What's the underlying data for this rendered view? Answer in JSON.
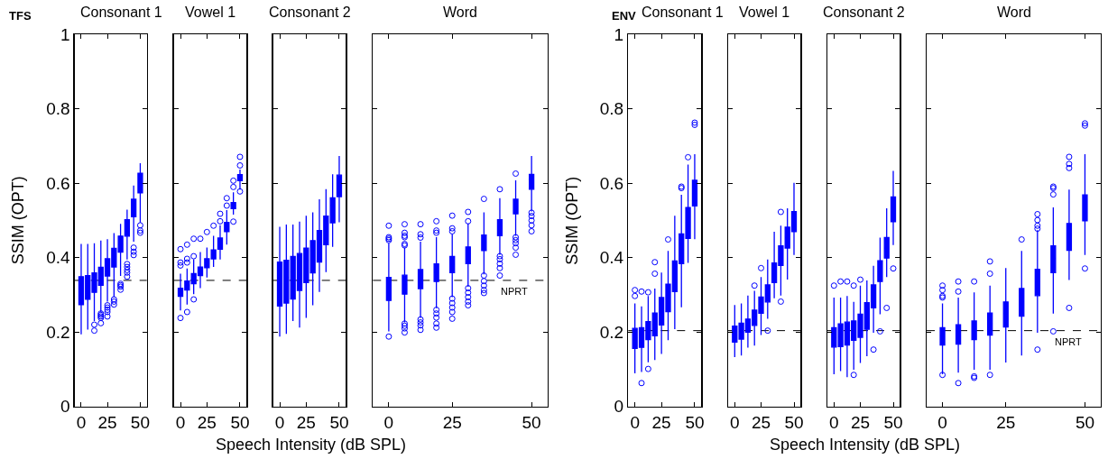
{
  "chart_data": [
    {
      "type": "box",
      "title": "Consonant 1",
      "ylabel": "SSIM (OPT)",
      "xlabel": "Speech Intensity (dB SPL)",
      "annotations": [
        "TFS"
      ],
      "categories": [
        "0",
        null,
        null,
        null,
        "25",
        null,
        null,
        null,
        null,
        "50"
      ],
      "ylim": [
        0,
        1
      ],
      "yticks": [
        0,
        0.2,
        0.4,
        0.6,
        0.8,
        1
      ],
      "ref_lines": [
        {
          "axis": "y",
          "value": 0.339,
          "line_style": "dashed",
          "color": "#000000"
        }
      ],
      "series": [
        {
          "color": "#0000ff",
          "boxes": [
            {
              "low": 0.194,
              "q1": 0.274,
              "median": 0.309,
              "q3": 0.349,
              "high": 0.437
            },
            {
              "low": 0.207,
              "q1": 0.288,
              "median": 0.321,
              "q3": 0.352,
              "high": 0.437
            },
            {
              "low": 0.23,
              "q1": 0.307,
              "median": 0.339,
              "q3": 0.359,
              "high": 0.439,
              "outliers": [
                0.22,
                0.204
              ]
            },
            {
              "low": 0.254,
              "q1": 0.326,
              "median": 0.358,
              "q3": 0.374,
              "high": 0.446,
              "outliers": [
                0.25,
                0.246,
                0.242,
                0.238,
                0.224
              ]
            },
            {
              "low": 0.282,
              "q1": 0.351,
              "median": 0.377,
              "q3": 0.397,
              "high": 0.45,
              "outliers": [
                0.272,
                0.266,
                0.26,
                0.254,
                0.242
              ]
            },
            {
              "low": 0.294,
              "q1": 0.375,
              "median": 0.404,
              "q3": 0.425,
              "high": 0.466,
              "outliers": [
                0.288,
                0.282,
                0.274
              ]
            },
            {
              "low": 0.351,
              "q1": 0.415,
              "median": 0.436,
              "q3": 0.458,
              "high": 0.491,
              "outliers": [
                0.33,
                0.326,
                0.322,
                0.314
              ]
            },
            {
              "low": 0.395,
              "q1": 0.458,
              "median": 0.481,
              "q3": 0.502,
              "high": 0.529,
              "outliers": [
                0.383,
                0.375,
                0.367,
                0.36,
                0.349
              ]
            },
            {
              "low": 0.443,
              "q1": 0.51,
              "median": 0.532,
              "q3": 0.557,
              "high": 0.594,
              "outliers": [
                0.427,
                0.416,
                0.407
              ]
            },
            {
              "low": 0.494,
              "q1": 0.574,
              "median": 0.605,
              "q3": 0.627,
              "high": 0.654,
              "outliers": [
                0.487,
                0.473,
                0.467
              ]
            }
          ]
        }
      ]
    },
    {
      "type": "box",
      "title": "Vowel 1",
      "tick_labels": "x",
      "categories": [
        "0",
        null,
        null,
        null,
        "25",
        null,
        null,
        null,
        null,
        "50"
      ],
      "ylim": [
        0,
        1
      ],
      "yticks": [
        0,
        0.2,
        0.4,
        0.6,
        0.8,
        1
      ],
      "ref_lines": [
        {
          "axis": "y",
          "value": 0.339,
          "line_style": "dashed",
          "color": "#000000"
        }
      ],
      "series": [
        {
          "color": "#0000ff",
          "boxes": [
            {
              "low": 0.258,
              "q1": 0.296,
              "median": 0.309,
              "q3": 0.318,
              "high": 0.357,
              "outliers": [
                0.423,
                0.387,
                0.379,
                0.238
              ]
            },
            {
              "low": 0.274,
              "q1": 0.313,
              "median": 0.325,
              "q3": 0.337,
              "high": 0.371,
              "outliers": [
                0.435,
                0.397,
                0.387,
                0.254
              ]
            },
            {
              "low": 0.302,
              "q1": 0.33,
              "median": 0.343,
              "q3": 0.357,
              "high": 0.396,
              "outliers": [
                0.451,
                0.404,
                0.288
              ]
            },
            {
              "low": 0.318,
              "q1": 0.352,
              "median": 0.363,
              "q3": 0.375,
              "high": 0.415,
              "outliers": [
                0.451
              ]
            },
            {
              "low": 0.347,
              "q1": 0.373,
              "median": 0.384,
              "q3": 0.397,
              "high": 0.427,
              "outliers": [
                0.469
              ]
            },
            {
              "low": 0.375,
              "q1": 0.397,
              "median": 0.408,
              "q3": 0.421,
              "high": 0.459,
              "outliers": [
                0.486
              ]
            },
            {
              "low": 0.395,
              "q1": 0.423,
              "median": 0.437,
              "q3": 0.453,
              "high": 0.487,
              "outliers": [
                0.498,
                0.518
              ]
            },
            {
              "low": 0.435,
              "q1": 0.47,
              "median": 0.485,
              "q3": 0.495,
              "high": 0.528,
              "outliers": [
                0.54,
                0.56
              ]
            },
            {
              "low": 0.516,
              "q1": 0.532,
              "median": 0.542,
              "q3": 0.548,
              "high": 0.576,
              "outliers": [
                0.59,
                0.607,
                0.497
              ]
            },
            {
              "low": 0.583,
              "q1": 0.607,
              "median": 0.615,
              "q3": 0.623,
              "high": 0.637,
              "outliers": [
                0.648,
                0.671,
                0.578
              ]
            }
          ]
        }
      ]
    },
    {
      "type": "box",
      "title": "Consonant 2",
      "tick_labels": "x",
      "categories": [
        "0",
        null,
        null,
        null,
        "25",
        null,
        null,
        null,
        null,
        "50"
      ],
      "ylim": [
        0,
        1
      ],
      "yticks": [
        0,
        0.2,
        0.4,
        0.6,
        0.8,
        1
      ],
      "ref_lines": [
        {
          "axis": "y",
          "value": 0.339,
          "line_style": "dashed",
          "color": "#000000"
        }
      ],
      "series": [
        {
          "color": "#0000ff",
          "boxes": [
            {
              "low": 0.188,
              "q1": 0.27,
              "median": 0.329,
              "q3": 0.388,
              "high": 0.483
            },
            {
              "low": 0.195,
              "q1": 0.278,
              "median": 0.347,
              "q3": 0.393,
              "high": 0.489
            },
            {
              "low": 0.23,
              "q1": 0.289,
              "median": 0.362,
              "q3": 0.403,
              "high": 0.489
            },
            {
              "low": 0.212,
              "q1": 0.312,
              "median": 0.373,
              "q3": 0.411,
              "high": 0.497
            },
            {
              "low": 0.238,
              "q1": 0.333,
              "median": 0.393,
              "q3": 0.426,
              "high": 0.513
            },
            {
              "low": 0.272,
              "q1": 0.359,
              "median": 0.418,
              "q3": 0.446,
              "high": 0.522
            },
            {
              "low": 0.308,
              "q1": 0.388,
              "median": 0.45,
              "q3": 0.473,
              "high": 0.557
            },
            {
              "low": 0.361,
              "q1": 0.435,
              "median": 0.491,
              "q3": 0.512,
              "high": 0.584
            },
            {
              "low": 0.429,
              "q1": 0.494,
              "median": 0.541,
              "q3": 0.561,
              "high": 0.624
            },
            {
              "low": 0.495,
              "q1": 0.564,
              "median": 0.606,
              "q3": 0.622,
              "high": 0.673
            }
          ]
        }
      ]
    },
    {
      "type": "box",
      "title": "Word",
      "tick_labels": "x",
      "categories": [
        "0",
        null,
        null,
        null,
        "25",
        null,
        null,
        null,
        null,
        "50"
      ],
      "ylim": [
        0,
        1
      ],
      "yticks": [
        0,
        0.2,
        0.4,
        0.6,
        0.8,
        1
      ],
      "ref_lines": [
        {
          "axis": "y",
          "value": 0.339,
          "label": "NPRT",
          "line_style": "dashed",
          "color": "#000000"
        }
      ],
      "series": [
        {
          "color": "#0000ff",
          "boxes": [
            {
              "low": 0.202,
              "q1": 0.285,
              "median": 0.313,
              "q3": 0.347,
              "high": 0.439,
              "outliers": [
                0.486,
                0.455,
                0.451,
                0.447,
                0.188
              ]
            },
            {
              "low": 0.226,
              "q1": 0.302,
              "median": 0.327,
              "q3": 0.353,
              "high": 0.427,
              "outliers": [
                0.49,
                0.467,
                0.459,
                0.455,
                0.437,
                0.433,
                0.223,
                0.217,
                0.21,
                0.199
              ]
            },
            {
              "low": 0.238,
              "q1": 0.317,
              "median": 0.343,
              "q3": 0.368,
              "high": 0.443,
              "outliers": [
                0.49,
                0.463,
                0.454,
                0.234,
                0.226,
                0.218,
                0.206
              ]
            },
            {
              "low": 0.264,
              "q1": 0.336,
              "median": 0.361,
              "q3": 0.383,
              "high": 0.455,
              "outliers": [
                0.498,
                0.473,
                0.467,
                0.26,
                0.25,
                0.239,
                0.223,
                0.212
              ]
            },
            {
              "low": 0.294,
              "q1": 0.36,
              "median": 0.383,
              "q3": 0.403,
              "high": 0.463,
              "outliers": [
                0.513,
                0.479,
                0.471,
                0.29,
                0.278,
                0.266,
                0.254,
                0.236
              ]
            },
            {
              "low": 0.322,
              "q1": 0.384,
              "median": 0.408,
              "q3": 0.429,
              "high": 0.492,
              "outliers": [
                0.523,
                0.498,
                0.318,
                0.306,
                0.294,
                0.282,
                0.272
              ]
            },
            {
              "low": 0.355,
              "q1": 0.419,
              "median": 0.441,
              "q3": 0.461,
              "high": 0.522,
              "outliers": [
                0.558,
                0.352,
                0.337,
                0.325,
                0.313,
                0.305
              ]
            },
            {
              "low": 0.408,
              "q1": 0.459,
              "median": 0.485,
              "q3": 0.502,
              "high": 0.56,
              "outliers": [
                0.584,
                0.404,
                0.396,
                0.384,
                0.372,
                0.352
              ]
            },
            {
              "low": 0.459,
              "q1": 0.518,
              "median": 0.541,
              "q3": 0.557,
              "high": 0.608,
              "outliers": [
                0.626,
                0.455,
                0.447,
                0.439,
                0.427,
                0.408
              ]
            },
            {
              "low": 0.524,
              "q1": 0.584,
              "median": 0.61,
              "q3": 0.624,
              "high": 0.673,
              "outliers": [
                0.521,
                0.512,
                0.5,
                0.487,
                0.471
              ]
            }
          ]
        }
      ]
    },
    {
      "type": "box",
      "title": "Consonant 1",
      "ylabel": "SSIM (OPT)",
      "xlabel": "Speech Intensity (dB SPL)",
      "annotations": [
        "ENV"
      ],
      "categories": [
        "0",
        null,
        null,
        null,
        "25",
        null,
        null,
        null,
        null,
        "50"
      ],
      "ylim": [
        0,
        1
      ],
      "yticks": [
        0,
        0.2,
        0.4,
        0.6,
        0.8,
        1
      ],
      "ref_lines": [
        {
          "axis": "y",
          "value": 0.204,
          "line_style": "dashed",
          "color": "#000000"
        }
      ],
      "series": [
        {
          "color": "#0000ff",
          "boxes": [
            {
              "low": 0.089,
              "q1": 0.156,
              "median": 0.181,
              "q3": 0.21,
              "high": 0.277,
              "outliers": [
                0.313,
                0.297
              ]
            },
            {
              "low": 0.093,
              "q1": 0.159,
              "median": 0.186,
              "q3": 0.212,
              "high": 0.269,
              "outliers": [
                0.309,
                0.063
              ]
            },
            {
              "low": 0.119,
              "q1": 0.18,
              "median": 0.206,
              "q3": 0.228,
              "high": 0.297,
              "outliers": [
                0.307,
                0.101
              ]
            },
            {
              "low": 0.125,
              "q1": 0.19,
              "median": 0.22,
              "q3": 0.251,
              "high": 0.317,
              "outliers": [
                0.388,
                0.357
              ]
            },
            {
              "low": 0.141,
              "q1": 0.219,
              "median": 0.251,
              "q3": 0.293,
              "high": 0.36
            },
            {
              "low": 0.178,
              "q1": 0.255,
              "median": 0.295,
              "q3": 0.329,
              "high": 0.418,
              "outliers": [
                0.449
              ]
            },
            {
              "low": 0.208,
              "q1": 0.309,
              "median": 0.348,
              "q3": 0.391,
              "high": 0.513
            },
            {
              "low": 0.267,
              "q1": 0.384,
              "median": 0.422,
              "q3": 0.464,
              "high": 0.569,
              "outliers": [
                0.591,
                0.587
              ]
            },
            {
              "low": 0.386,
              "q1": 0.452,
              "median": 0.494,
              "q3": 0.535,
              "high": 0.65,
              "outliers": [
                0.67
              ]
            },
            {
              "low": 0.45,
              "q1": 0.539,
              "median": 0.574,
              "q3": 0.608,
              "high": 0.678,
              "outliers": [
                0.763,
                0.757
              ]
            }
          ]
        }
      ]
    },
    {
      "type": "box",
      "title": "Vowel 1",
      "tick_labels": "x",
      "categories": [
        "0",
        null,
        null,
        null,
        "25",
        null,
        null,
        null,
        null,
        "50"
      ],
      "ylim": [
        0,
        1
      ],
      "yticks": [
        0,
        0.2,
        0.4,
        0.6,
        0.8,
        1
      ],
      "ref_lines": [
        {
          "axis": "y",
          "value": 0.204,
          "line_style": "dashed",
          "color": "#000000"
        }
      ],
      "series": [
        {
          "color": "#0000ff",
          "boxes": [
            {
              "low": 0.133,
              "q1": 0.173,
              "median": 0.196,
              "q3": 0.216,
              "high": 0.273
            },
            {
              "low": 0.137,
              "q1": 0.181,
              "median": 0.202,
              "q3": 0.224,
              "high": 0.277
            },
            {
              "low": 0.158,
              "q1": 0.2,
              "median": 0.216,
              "q3": 0.235,
              "high": 0.298
            },
            {
              "low": 0.164,
              "q1": 0.218,
              "median": 0.243,
              "q3": 0.259,
              "high": 0.311,
              "outliers": [
                0.325
              ]
            },
            {
              "low": 0.192,
              "q1": 0.251,
              "median": 0.269,
              "q3": 0.294,
              "high": 0.348,
              "outliers": [
                0.372
              ]
            },
            {
              "low": 0.236,
              "q1": 0.281,
              "median": 0.302,
              "q3": 0.327,
              "high": 0.395,
              "outliers": [
                0.204
              ]
            },
            {
              "low": 0.291,
              "q1": 0.333,
              "median": 0.357,
              "q3": 0.386,
              "high": 0.47
            },
            {
              "low": 0.298,
              "q1": 0.379,
              "median": 0.406,
              "q3": 0.432,
              "high": 0.486,
              "outliers": [
                0.523,
                0.282
              ]
            },
            {
              "low": 0.341,
              "q1": 0.426,
              "median": 0.454,
              "q3": 0.482,
              "high": 0.533
            },
            {
              "low": 0.407,
              "q1": 0.47,
              "median": 0.503,
              "q3": 0.524,
              "high": 0.601
            }
          ]
        }
      ]
    },
    {
      "type": "box",
      "title": "Consonant 2",
      "tick_labels": "x",
      "categories": [
        "0",
        null,
        null,
        null,
        "25",
        null,
        null,
        null,
        null,
        "50"
      ],
      "ylim": [
        0,
        1
      ],
      "yticks": [
        0,
        0.2,
        0.4,
        0.6,
        0.8,
        1
      ],
      "ref_lines": [
        {
          "axis": "y",
          "value": 0.204,
          "line_style": "dashed",
          "color": "#000000"
        }
      ],
      "series": [
        {
          "color": "#0000ff",
          "boxes": [
            {
              "low": 0.087,
              "q1": 0.16,
              "median": 0.185,
              "q3": 0.212,
              "high": 0.293,
              "outliers": [
                0.325
              ]
            },
            {
              "low": 0.095,
              "q1": 0.161,
              "median": 0.188,
              "q3": 0.222,
              "high": 0.293,
              "outliers": [
                0.336
              ]
            },
            {
              "low": 0.079,
              "q1": 0.165,
              "median": 0.196,
              "q3": 0.227,
              "high": 0.297,
              "outliers": [
                0.336
              ]
            },
            {
              "low": 0.099,
              "q1": 0.178,
              "median": 0.206,
              "q3": 0.23,
              "high": 0.281,
              "outliers": [
                0.325,
                0.085
              ]
            },
            {
              "low": 0.117,
              "q1": 0.186,
              "median": 0.21,
              "q3": 0.248,
              "high": 0.325,
              "outliers": [
                0.341
              ]
            },
            {
              "low": 0.135,
              "q1": 0.208,
              "median": 0.24,
              "q3": 0.279,
              "high": 0.339
            },
            {
              "low": 0.198,
              "q1": 0.265,
              "median": 0.293,
              "q3": 0.327,
              "high": 0.378,
              "outliers": [
                0.153
              ]
            },
            {
              "low": 0.248,
              "q1": 0.336,
              "median": 0.36,
              "q3": 0.392,
              "high": 0.454,
              "outliers": [
                0.202
              ]
            },
            {
              "low": 0.348,
              "q1": 0.399,
              "median": 0.426,
              "q3": 0.454,
              "high": 0.533,
              "outliers": [
                0.265
              ]
            },
            {
              "low": 0.434,
              "q1": 0.497,
              "median": 0.527,
              "q3": 0.563,
              "high": 0.633,
              "outliers": [
                0.371
              ]
            }
          ]
        }
      ]
    },
    {
      "type": "box",
      "title": "Word",
      "tick_labels": "x",
      "categories": [
        "0",
        null,
        null,
        null,
        "25",
        null,
        null,
        null,
        null,
        "50"
      ],
      "ylim": [
        0,
        1
      ],
      "yticks": [
        0,
        0.2,
        0.4,
        0.6,
        0.8,
        1
      ],
      "ref_lines": [
        {
          "axis": "y",
          "value": 0.204,
          "label": "NPRT",
          "line_style": "dashed",
          "color": "#000000"
        }
      ],
      "series": [
        {
          "color": "#0000ff",
          "boxes": [
            {
              "low": 0.087,
              "q1": 0.165,
              "median": 0.19,
              "q3": 0.212,
              "high": 0.277,
              "outliers": [
                0.325,
                0.313,
                0.297,
                0.293,
                0.085
              ]
            },
            {
              "low": 0.091,
              "q1": 0.168,
              "median": 0.192,
              "q3": 0.22,
              "high": 0.293,
              "outliers": [
                0.336,
                0.309,
                0.063
              ]
            },
            {
              "low": 0.099,
              "q1": 0.18,
              "median": 0.206,
              "q3": 0.23,
              "high": 0.307,
              "outliers": [
                0.336,
                0.081,
                0.077
              ]
            },
            {
              "low": 0.099,
              "q1": 0.192,
              "median": 0.223,
              "q3": 0.251,
              "high": 0.325,
              "outliers": [
                0.39,
                0.357,
                0.085
              ]
            },
            {
              "low": 0.118,
              "q1": 0.214,
              "median": 0.25,
              "q3": 0.281,
              "high": 0.372
            },
            {
              "low": 0.137,
              "q1": 0.243,
              "median": 0.282,
              "q3": 0.317,
              "high": 0.418,
              "outliers": [
                0.449
              ]
            },
            {
              "low": 0.198,
              "q1": 0.298,
              "median": 0.337,
              "q3": 0.369,
              "high": 0.474,
              "outliers": [
                0.517,
                0.501,
                0.486,
                0.478,
                0.153
              ]
            },
            {
              "low": 0.25,
              "q1": 0.36,
              "median": 0.398,
              "q3": 0.432,
              "high": 0.535,
              "outliers": [
                0.591,
                0.587,
                0.57,
                0.202
              ]
            },
            {
              "low": 0.34,
              "q1": 0.42,
              "median": 0.454,
              "q3": 0.492,
              "high": 0.583,
              "outliers": [
                0.671,
                0.652,
                0.641,
                0.265
              ]
            },
            {
              "low": 0.407,
              "q1": 0.499,
              "median": 0.528,
              "q3": 0.569,
              "high": 0.678,
              "outliers": [
                0.761,
                0.755,
                0.371
              ]
            }
          ]
        }
      ]
    }
  ]
}
